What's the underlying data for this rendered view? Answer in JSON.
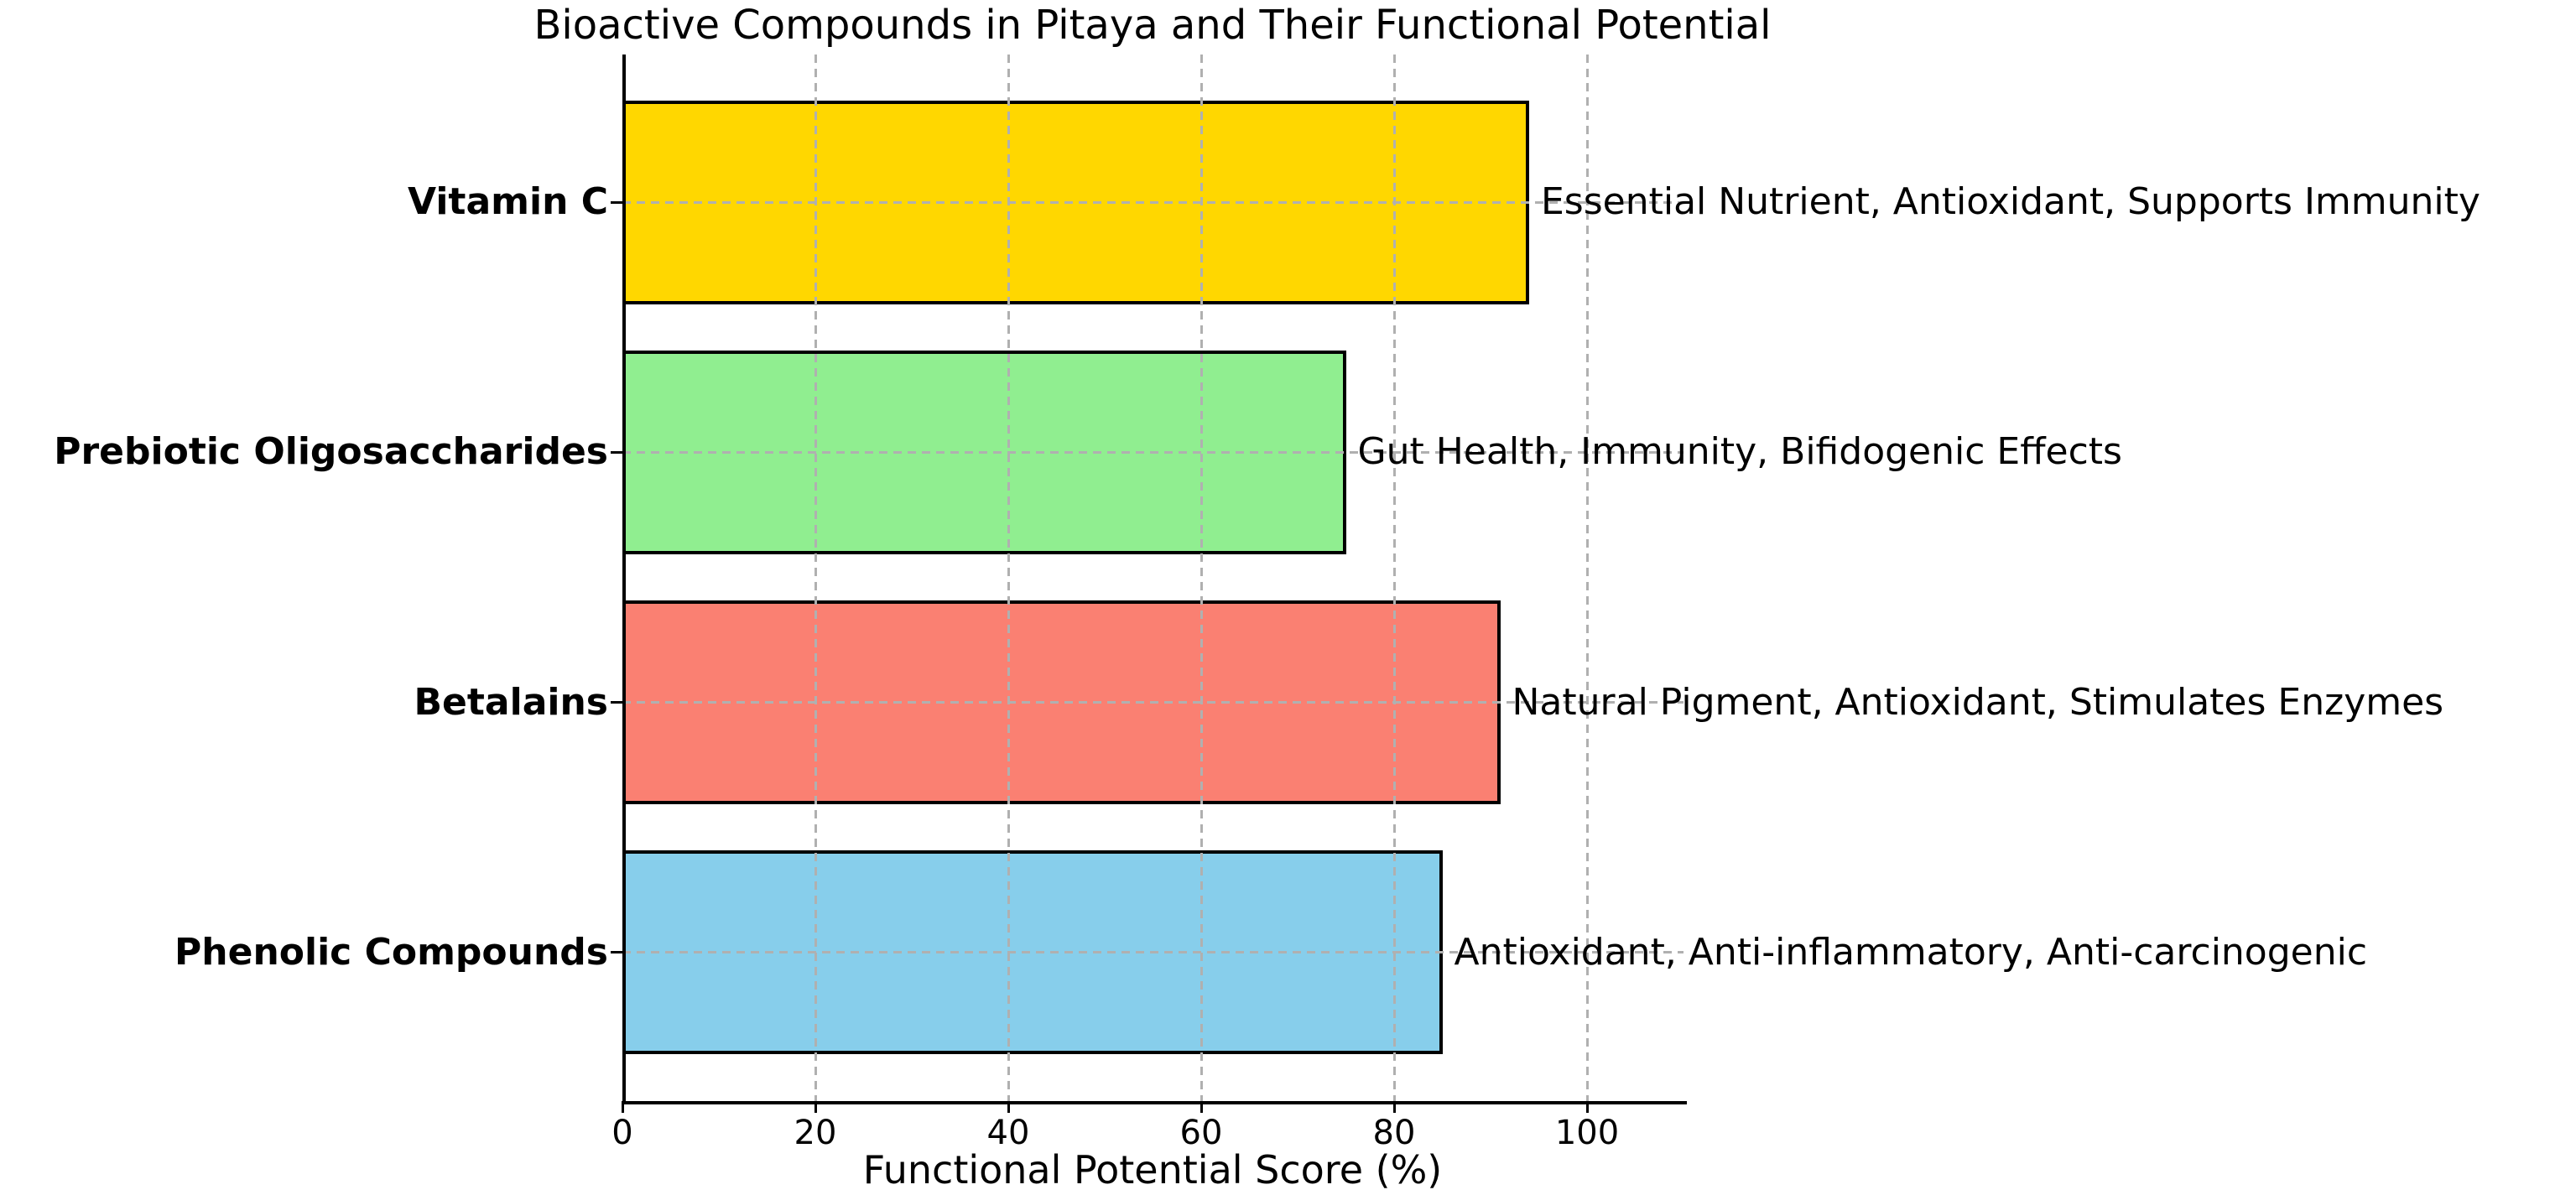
{
  "title": "Bioactive Compounds in Pitaya and Their Functional Potential",
  "chart_data": {
    "type": "bar",
    "orientation": "horizontal",
    "title": "Bioactive Compounds in Pitaya and Their Functional Potential",
    "xlabel": "Functional Potential Score (%)",
    "ylabel": "",
    "categories": [
      "Vitamin C",
      "Prebiotic Oligosaccharides",
      "Betalains",
      "Phenolic Compounds"
    ],
    "values": [
      94,
      75,
      91,
      85
    ],
    "annotations": [
      "Essential Nutrient, Antioxidant, Supports Immunity",
      "Gut Health, Immunity, Bifidogenic Effects",
      "Natural Pigment, Antioxidant, Stimulates Enzymes",
      "Antioxidant, Anti-inflammatory, Anti-carcinogenic"
    ],
    "bar_colors": [
      "#FFD700",
      "#90EE90",
      "#FA8072",
      "#87CEEB"
    ],
    "bar_edge_color": "#000000",
    "background_color": "#ffffff",
    "grid": true,
    "grid_style": "dashed",
    "grid_color": "#b0b0b0",
    "xlim": [
      0,
      110
    ],
    "xticks": [
      0,
      20,
      40,
      60,
      80,
      100
    ],
    "legend": "none"
  }
}
